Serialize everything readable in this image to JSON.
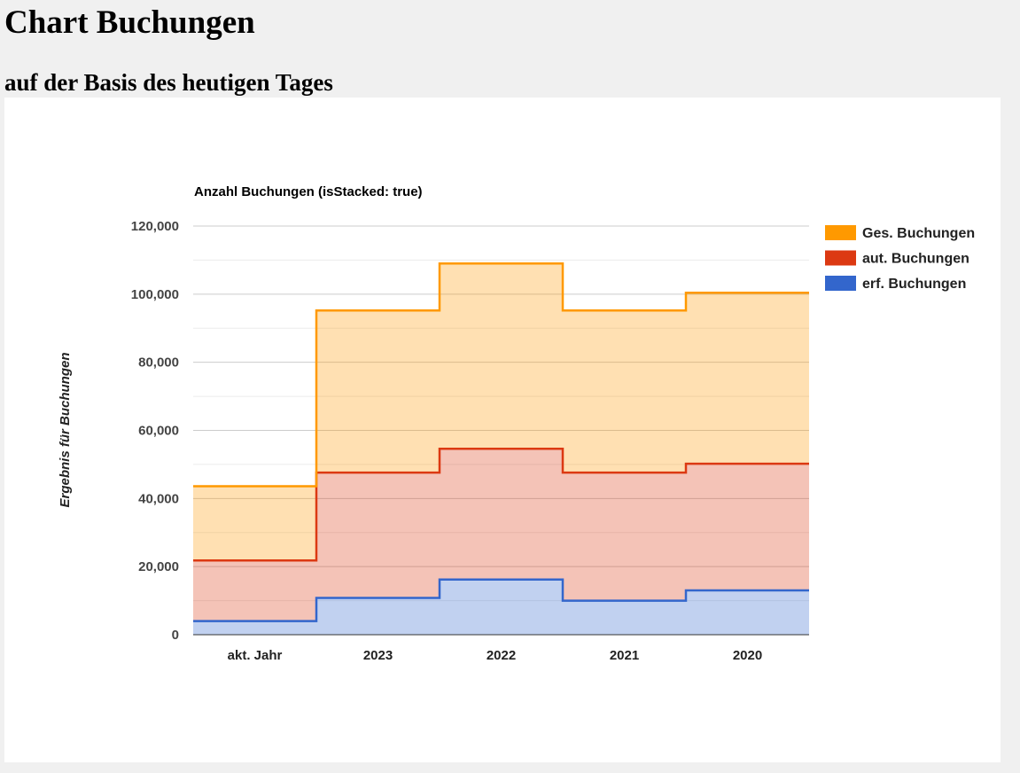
{
  "page": {
    "title": "Chart Buchungen",
    "subtitle": "auf der Basis des heutigen Tages"
  },
  "chart_data": {
    "type": "area",
    "stepped": true,
    "stacked": true,
    "title": "Anzahl Buchungen (isStacked: true)",
    "xlabel": "",
    "ylabel": "Ergebnis für Buchungen",
    "categories": [
      "akt. Jahr",
      "2023",
      "2022",
      "2021",
      "2020"
    ],
    "ylim": [
      0,
      120000
    ],
    "yticks": [
      0,
      20000,
      40000,
      60000,
      80000,
      100000,
      120000
    ],
    "ytick_labels": [
      "0",
      "20,000",
      "40,000",
      "60,000",
      "80,000",
      "100,000",
      "120,000"
    ],
    "grid": true,
    "legend_position": "right",
    "series": [
      {
        "name": "erf. Buchungen",
        "color": "#3366cc",
        "values": [
          4000,
          10800,
          16200,
          10000,
          13000
        ]
      },
      {
        "name": "aut. Buchungen",
        "color": "#dc3912",
        "values": [
          17800,
          36800,
          38400,
          37600,
          37200
        ]
      },
      {
        "name": "Ges. Buchungen",
        "color": "#ff9900",
        "values": [
          21800,
          47600,
          54400,
          47600,
          50200
        ]
      }
    ],
    "legend_order": [
      "Ges. Buchungen",
      "aut. Buchungen",
      "erf. Buchungen"
    ]
  }
}
